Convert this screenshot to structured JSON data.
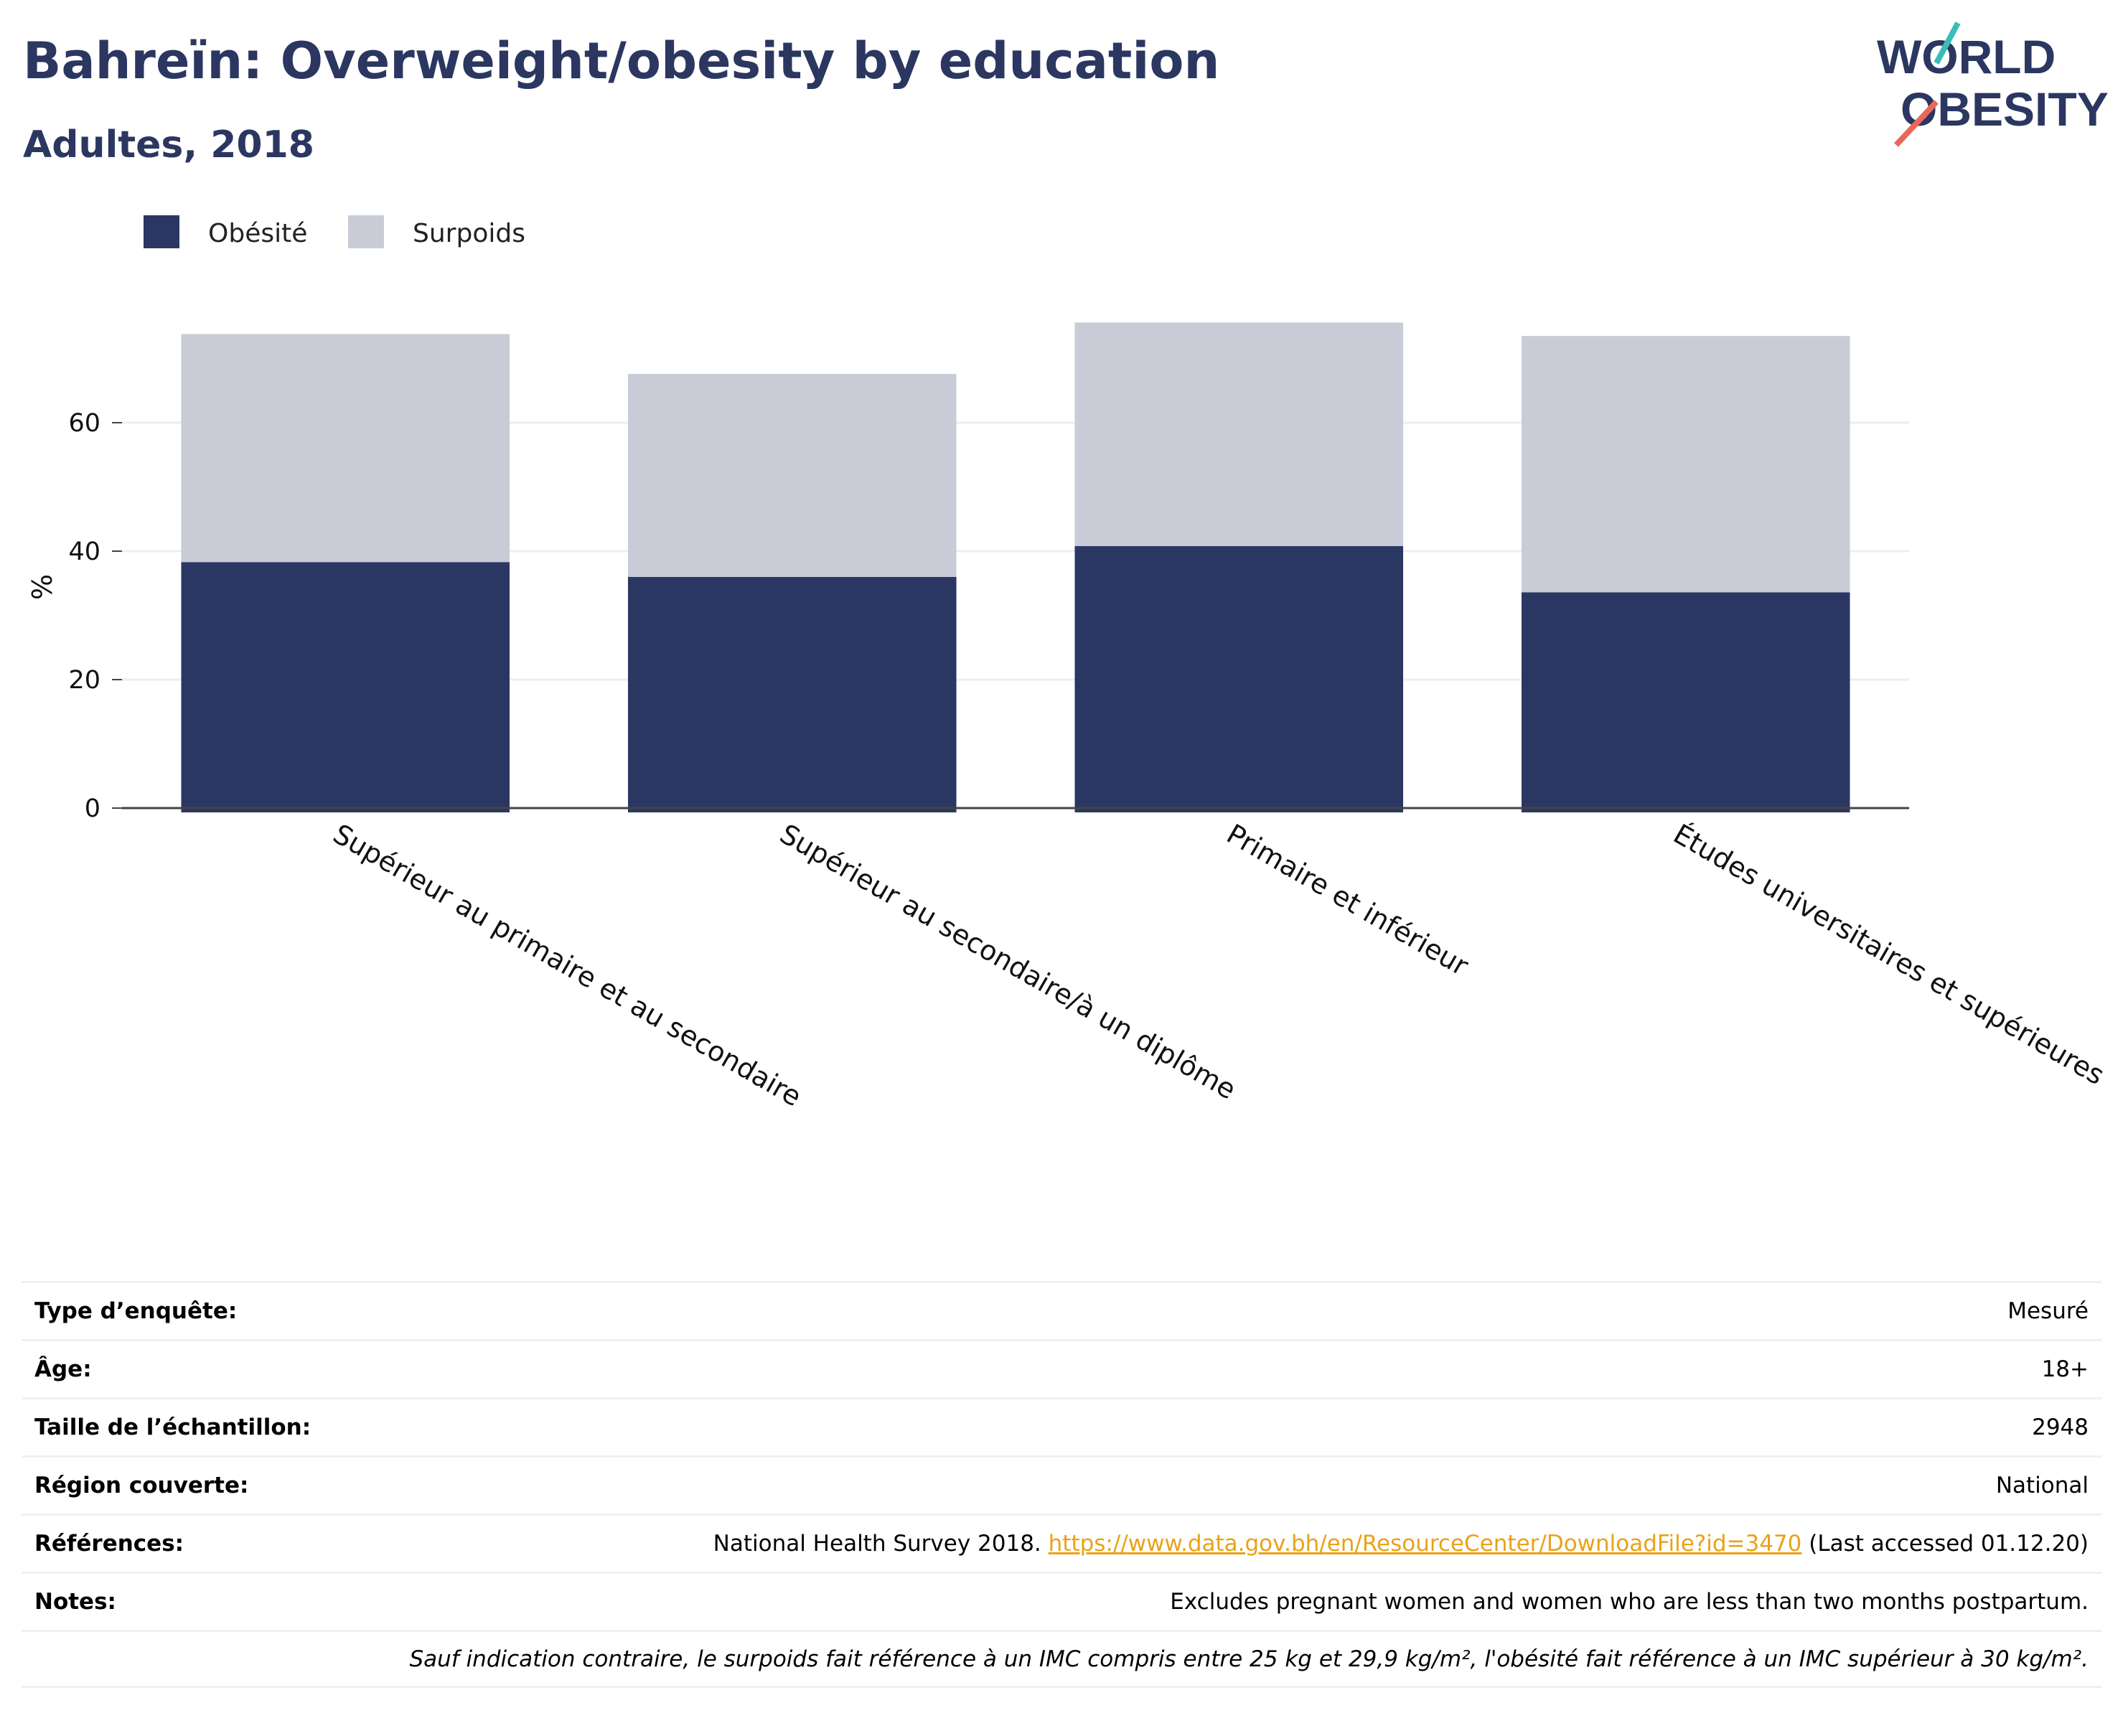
{
  "title": "Bahreïn: Overweight/obesity by education",
  "subtitle": "Adultes, 2018",
  "logo": {
    "line1": "WORLD",
    "line2": "OBESITY"
  },
  "colors": {
    "obesity": "#2b3763",
    "overweight": "#c9ccd7",
    "title": "#2b3760",
    "link": "#e8a317"
  },
  "chart_data": {
    "type": "bar",
    "stacked": true,
    "categories": [
      "Supérieur au primaire et au secondaire",
      "Supérieur au secondaire/à un diplôme",
      "Primaire et inférieur",
      "Études universitaires et supérieures"
    ],
    "series": [
      {
        "name": "Obésité",
        "values": [
          38.3,
          36.0,
          40.8,
          33.6
        ]
      },
      {
        "name": "Surpoids",
        "values": [
          35.5,
          31.6,
          34.8,
          39.9
        ]
      }
    ],
    "ylabel": "%",
    "xlabel": "",
    "ylim": [
      0,
      80
    ],
    "yticks": [
      0,
      20,
      40,
      60
    ],
    "grid": true,
    "legend_position": "top-left"
  },
  "info": {
    "survey_type": {
      "label": "Type d’enquête:",
      "value": "Mesuré"
    },
    "age": {
      "label": "Âge:",
      "value": "18+"
    },
    "sample_size": {
      "label": "Taille de l’échantillon:",
      "value": "2948"
    },
    "region": {
      "label": "Région couverte:",
      "value": "National"
    },
    "references": {
      "label": "Références:",
      "prefix": "National Health Survey 2018.",
      "link": "https://www.data.gov.bh/en/ResourceCenter/DownloadFile?id=3470",
      "suffix": "(Last accessed 01.12.20)"
    },
    "notes": {
      "label": "Notes:",
      "value": "Excludes pregnant women and women who are less than two months postpartum."
    },
    "footnote": "Sauf indication contraire, le surpoids fait référence à un IMC compris entre 25 kg et 29,9 kg/m², l'obésité fait référence à un IMC supérieur à 30 kg/m²."
  }
}
